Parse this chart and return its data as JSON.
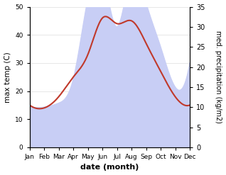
{
  "months": [
    "Jan",
    "Feb",
    "Mar",
    "Apr",
    "May",
    "Jun",
    "Jul",
    "Aug",
    "Sep",
    "Oct",
    "Nov",
    "Dec"
  ],
  "temp_max": [
    15,
    14,
    18,
    25,
    33,
    46,
    44,
    45,
    37,
    27,
    18,
    15
  ],
  "precipitation": [
    10,
    10,
    11,
    17,
    37,
    43,
    30,
    43,
    36,
    25,
    15,
    21
  ],
  "temp_color": "#c0392b",
  "precip_fill_color": "#c8cef5",
  "temp_ylim": [
    0,
    50
  ],
  "precip_ylim": [
    0,
    35
  ],
  "temp_yticks": [
    0,
    10,
    20,
    30,
    40,
    50
  ],
  "precip_yticks": [
    0,
    5,
    10,
    15,
    20,
    25,
    30,
    35
  ],
  "xlabel": "date (month)",
  "ylabel_left": "max temp (C)",
  "ylabel_right": "med. precipitation (kg/m2)",
  "figsize": [
    3.18,
    2.47
  ],
  "dpi": 100
}
